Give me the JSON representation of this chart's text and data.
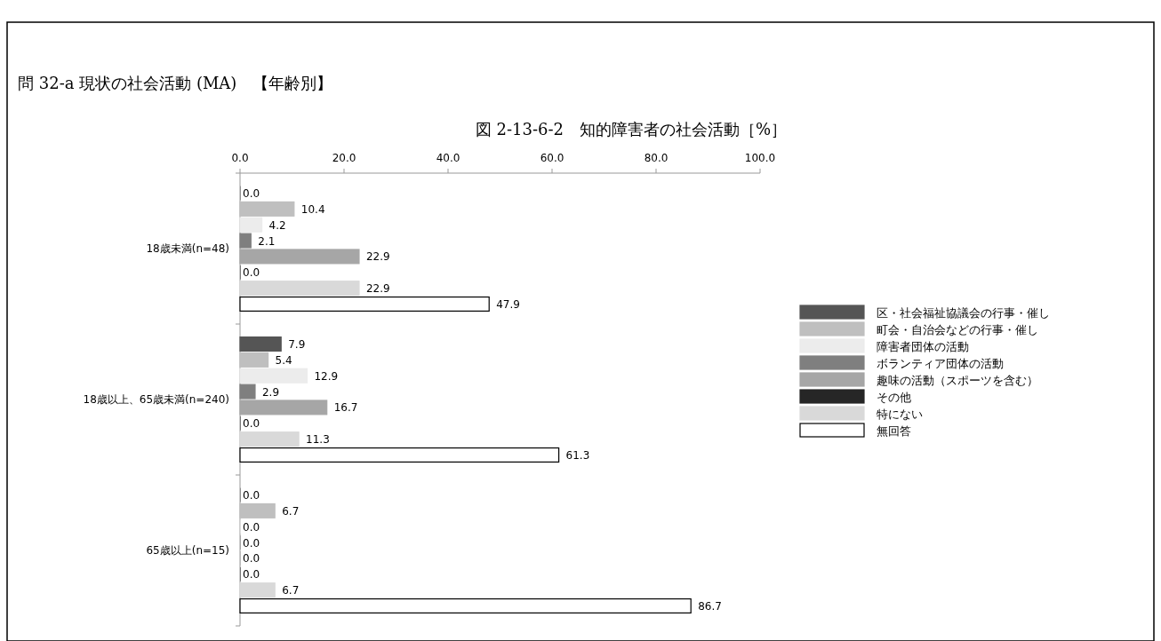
{
  "chart_data": {
    "type": "bar",
    "orientation": "horizontal",
    "title": "問 32-a 現状の社会活動 (MA)　【年齢別】",
    "subtitle": "図 2-13-6-2　知的障害者の社会活動［%］",
    "categories": [
      "18歳未満(n=48)",
      "18歳以上、65歳未満(n=240)",
      "65歳以上(n=15)"
    ],
    "series": [
      {
        "name": "区・社会福祉協議会の行事・催し",
        "color": "#555555",
        "values": [
          0.0,
          7.9,
          0.0
        ],
        "value_labels": [
          "0.0",
          "7.9",
          "0.0"
        ]
      },
      {
        "name": "町会・自治会などの行事・催し",
        "color": "#bfbfbf",
        "values": [
          10.4,
          5.4,
          6.7
        ],
        "value_labels": [
          "10.4",
          "5.4",
          "6.7"
        ]
      },
      {
        "name": "障害者団体の活動",
        "color": "#ececec",
        "values": [
          4.2,
          12.9,
          0.0
        ],
        "value_labels": [
          "4.2",
          "12.9",
          "0.0"
        ]
      },
      {
        "name": "ボランティア団体の活動",
        "color": "#7f7f7f",
        "values": [
          2.1,
          2.9,
          0.0
        ],
        "value_labels": [
          "2.1",
          "2.9",
          "0.0"
        ]
      },
      {
        "name": "趣味の活動（スポーツを含む）",
        "color": "#a6a6a6",
        "values": [
          22.9,
          16.7,
          0.0
        ],
        "value_labels": [
          "22.9",
          "16.7",
          "0.0"
        ]
      },
      {
        "name": "その他",
        "color": "#262626",
        "values": [
          0.0,
          0.0,
          0.0
        ],
        "value_labels": [
          "0.0",
          "0.0",
          "0.0"
        ]
      },
      {
        "name": "特にない",
        "color": "#d9d9d9",
        "values": [
          22.9,
          11.3,
          6.7
        ],
        "value_labels": [
          "22.9",
          "11.3",
          "6.7"
        ]
      },
      {
        "name": "無回答",
        "color": "#ffffff",
        "values": [
          47.9,
          61.3,
          86.7
        ],
        "value_labels": [
          "47.9",
          "61.3",
          "86.7"
        ]
      }
    ],
    "xlim": [
      0,
      100
    ],
    "xticks": [
      {
        "value": 0,
        "label": "0.0"
      },
      {
        "value": 20,
        "label": "20.0"
      },
      {
        "value": 40,
        "label": "40.0"
      },
      {
        "value": 60,
        "label": "60.0"
      },
      {
        "value": 80,
        "label": "80.0"
      },
      {
        "value": 100,
        "label": "100.0"
      }
    ],
    "legend": "right",
    "grid": false
  }
}
